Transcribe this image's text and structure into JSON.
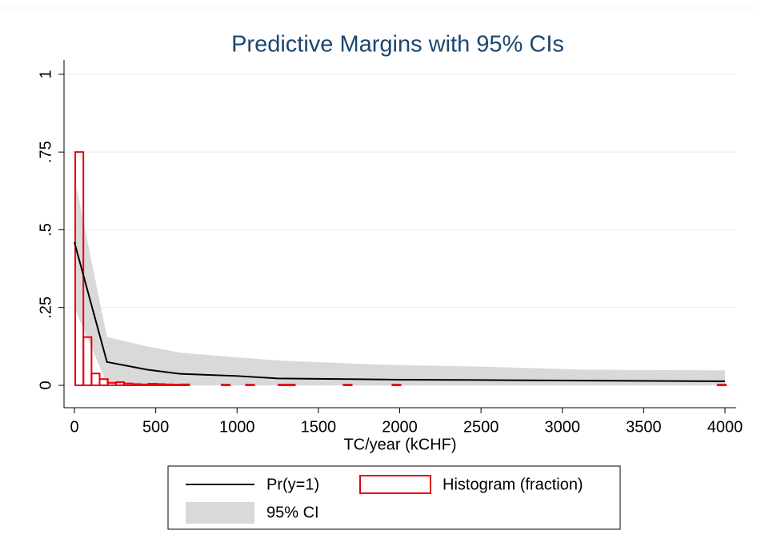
{
  "chart_data": {
    "type": "line",
    "title": "Predictive Margins with 95% CIs",
    "x_label": "TC/year (kCHF)",
    "xlim": [
      -64,
      4069
    ],
    "ylim": [
      -0.072,
      1.046
    ],
    "xticks": [
      0,
      500,
      1000,
      1500,
      2000,
      2500,
      3000,
      3500,
      4000
    ],
    "yticks": [
      0,
      {
        "value": 0.25,
        "label": ".25"
      },
      {
        "value": 0.5,
        "label": ".5"
      },
      {
        "value": 0.75,
        "label": ".75"
      },
      1
    ],
    "grid": true,
    "x": [
      0,
      200,
      450,
      650,
      1000,
      1250,
      1700,
      2000,
      2500,
      3150,
      4000
    ],
    "series": [
      {
        "name": "Pr(y=1)",
        "color": "#000000",
        "values": [
          0.46,
          0.075,
          0.05,
          0.037,
          0.03,
          0.022,
          0.02,
          0.018,
          0.017,
          0.015,
          0.013
        ]
      }
    ],
    "ci": {
      "name": "95% CI",
      "color": "#d9d9d9",
      "lower": [
        0.25,
        0.005,
        0,
        0,
        0,
        0,
        0,
        0,
        0,
        0,
        0
      ],
      "upper": [
        0.67,
        0.155,
        0.125,
        0.105,
        0.09,
        0.08,
        0.07,
        0.065,
        0.06,
        0.05,
        0.048
      ]
    },
    "histogram": {
      "name": "Histogram (fraction)",
      "color": "#e8000b",
      "bins": [
        5,
        55,
        105,
        155,
        205,
        255,
        305,
        355,
        405,
        455,
        505,
        555,
        605,
        655,
        705,
        755,
        805,
        855,
        905,
        955,
        1005,
        1055,
        1105,
        1155,
        1205,
        1255,
        1305,
        1355,
        1405,
        1455,
        1505,
        1555,
        1605,
        1655,
        1705,
        1755,
        1805,
        1855,
        1905,
        1955,
        2005,
        2055,
        2105,
        2155,
        2205,
        2255,
        2305,
        2355,
        2405,
        2455,
        2505,
        2555,
        2605,
        2655,
        2705,
        2755,
        2805,
        2855,
        2905,
        2955,
        3005,
        3055,
        3105,
        3155,
        3205,
        3255,
        3305,
        3355,
        3405,
        3455,
        3505,
        3555,
        3605,
        3655,
        3705,
        3755,
        3805,
        3855,
        3905,
        3955,
        4005
      ],
      "values": [
        0.75,
        0.155,
        0.038,
        0.02,
        0.008,
        0.01,
        0.006,
        0.004,
        0.003,
        0.005,
        0.004,
        0.003,
        0.002,
        0.003,
        0,
        0,
        0,
        0,
        0.002,
        0,
        0,
        0.002,
        0,
        0,
        0,
        0.002,
        0.002,
        0,
        0,
        0,
        0,
        0,
        0,
        0.002,
        0,
        0,
        0,
        0,
        0,
        0.002,
        0,
        0,
        0,
        0,
        0,
        0,
        0,
        0,
        0,
        0,
        0,
        0,
        0,
        0,
        0,
        0,
        0,
        0,
        0,
        0,
        0,
        0,
        0,
        0,
        0,
        0,
        0,
        0,
        0,
        0,
        0,
        0,
        0,
        0,
        0,
        0,
        0,
        0,
        0,
        0.002
      ]
    }
  }
}
